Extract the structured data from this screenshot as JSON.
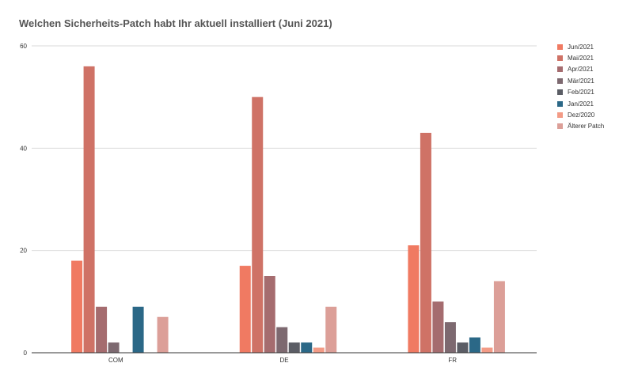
{
  "chart_data": {
    "type": "bar",
    "title": "Welchen Sicherheits-Patch habt Ihr aktuell installiert (Juni 2021)",
    "xlabel": "",
    "ylabel": "",
    "categories": [
      "COM",
      "DE",
      "FR"
    ],
    "ylim": [
      0,
      60
    ],
    "yticks": [
      0,
      20,
      40,
      60
    ],
    "grid": true,
    "legend_position": "right",
    "series": [
      {
        "name": "Jun/2021",
        "color": "#f07a62",
        "values": [
          18,
          17,
          21
        ]
      },
      {
        "name": "Mai/2021",
        "color": "#cf7266",
        "values": [
          56,
          50,
          43
        ]
      },
      {
        "name": "Apr/2021",
        "color": "#a56c6f",
        "values": [
          9,
          15,
          10
        ]
      },
      {
        "name": "Mär/2021",
        "color": "#7d6970",
        "values": [
          2,
          5,
          6
        ]
      },
      {
        "name": "Feb/2021",
        "color": "#5b5d65",
        "values": [
          0,
          2,
          2
        ]
      },
      {
        "name": "Jan/2021",
        "color": "#2b6887",
        "values": [
          9,
          2,
          3
        ]
      },
      {
        "name": "Dez/2020",
        "color": "#f39b86",
        "values": [
          0,
          1,
          1
        ]
      },
      {
        "name": "Älterer Patch",
        "color": "#dc9f98",
        "values": [
          7,
          9,
          14
        ]
      }
    ]
  }
}
